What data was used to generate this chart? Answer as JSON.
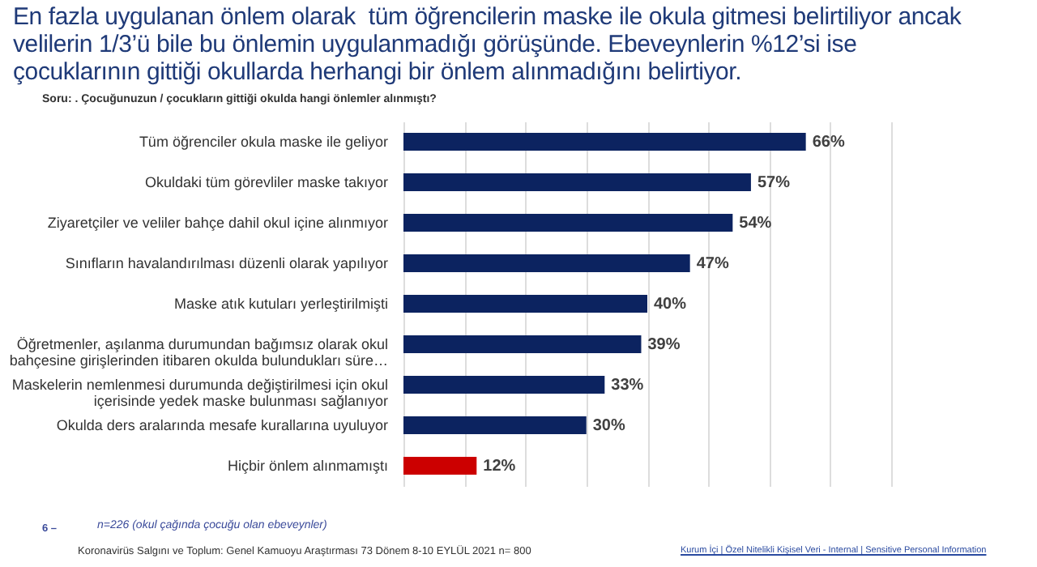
{
  "chart_data": {
    "type": "bar",
    "orientation": "horizontal",
    "title": "En fazla uygulanan önlem olarak  tüm öğrencilerin maske ile okula gitmesi belirtiliyor ancak\nvelilerin 1/3’ü bile bu önlemin uygulanmadığı görüşünde. Ebeveynlerin %12’si ise\nçocuklarının gittiği okullarda herhangi bir önlem alınmadığını belirtiyor.",
    "subtitle": "Soru: . Çocuğunuzun / çocukların gittiği  okulda hangi önlemler alınmıştı?",
    "categories": [
      "Tüm öğrenciler okula maske ile geliyor",
      "Okuldaki tüm görevliler maske takıyor",
      "Ziyaretçiler ve veliler bahçe dahil okul içine alınmıyor",
      "Sınıfların havalandırılması düzenli olarak yapılıyor",
      "Maske atık kutuları yerleştirilmişti",
      "Öğretmenler, aşılanma durumundan bağımsız olarak okul\nbahçesine girişlerinden itibaren okulda bulundukları süre…",
      "Maskelerin nemlenmesi durumunda değiştirilmesi için okul\niçerisinde yedek maske bulunması sağlanıyor",
      "Okulda ders aralarında mesafe kurallarına uyuluyor",
      "Hiçbir önlem alınmamıştı"
    ],
    "values": [
      66,
      57,
      54,
      47,
      40,
      39,
      33,
      30,
      12
    ],
    "value_labels": [
      "66%",
      "57%",
      "54%",
      "47%",
      "40%",
      "39%",
      "33%",
      "30%",
      "12%"
    ],
    "colors": [
      "#0c2360",
      "#0c2360",
      "#0c2360",
      "#0c2360",
      "#0c2360",
      "#0c2360",
      "#0c2360",
      "#0c2360",
      "#cc0000"
    ],
    "xlim": [
      0,
      80
    ],
    "grid": "x",
    "tick_labels": "y",
    "annotations": [
      "6 –",
      "n=226 (okul çağında çocuğu olan ebeveynler)",
      "Koronavirüs  Salgını ve Toplum:  Genel Kamuoyu Araştırması 73 Dönem  8-10  EYLÜL 2021   n= 800",
      "Kurum İçi | Özel Nitelikli Kişisel Veri - Internal | Sensitive Personal Information"
    ]
  }
}
